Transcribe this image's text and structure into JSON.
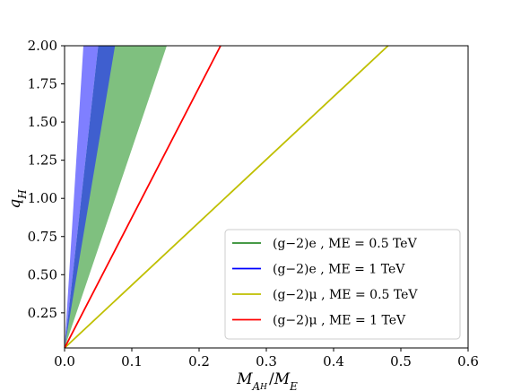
{
  "chart_data": {
    "type": "area",
    "xlabel": "M_{A_H}/M_E",
    "ylabel": "q_H",
    "xlim": [
      0.0,
      0.6
    ],
    "ylim": [
      0.02,
      2.0
    ],
    "x_ticks": [
      "0.0",
      "0.1",
      "0.2",
      "0.3",
      "0.4",
      "0.5",
      "0.6"
    ],
    "y_ticks": [
      "0.25",
      "0.50",
      "0.75",
      "1.00",
      "1.25",
      "1.50",
      "1.75",
      "2.00"
    ],
    "grid": false,
    "legend_placement": "lower-right",
    "bands": [
      {
        "id": "green",
        "color": "#7fc07f",
        "x_at_top": [
          0.065,
          0.152
        ]
      },
      {
        "id": "blue-light",
        "color": "#7f7fff",
        "x_at_top": [
          0.028,
          0.05
        ]
      },
      {
        "id": "blue-dark",
        "color": "#3f5fcf",
        "x_at_top": [
          0.05,
          0.075
        ]
      }
    ],
    "series": [
      {
        "name": "(g−2)e , ME = 0.5 TeV",
        "color": "#2e8b2e",
        "kind": "band",
        "x": [
          0.0,
          0.152
        ],
        "y": [
          0.02,
          2.0
        ]
      },
      {
        "name": "(g−2)e , ME = 1 TeV",
        "color": "#0000ff",
        "kind": "band",
        "x": [
          0.0,
          0.075
        ],
        "y": [
          0.02,
          2.0
        ]
      },
      {
        "name": "(g−2)μ , ME = 0.5 TeV",
        "color": "#bfbf00",
        "kind": "line",
        "x": [
          0.0,
          0.481
        ],
        "y": [
          0.02,
          2.0
        ]
      },
      {
        "name": "(g−2)μ , ME = 1 TeV",
        "color": "#ff0000",
        "kind": "line",
        "x": [
          0.0,
          0.232
        ],
        "y": [
          0.02,
          2.0
        ]
      }
    ]
  }
}
